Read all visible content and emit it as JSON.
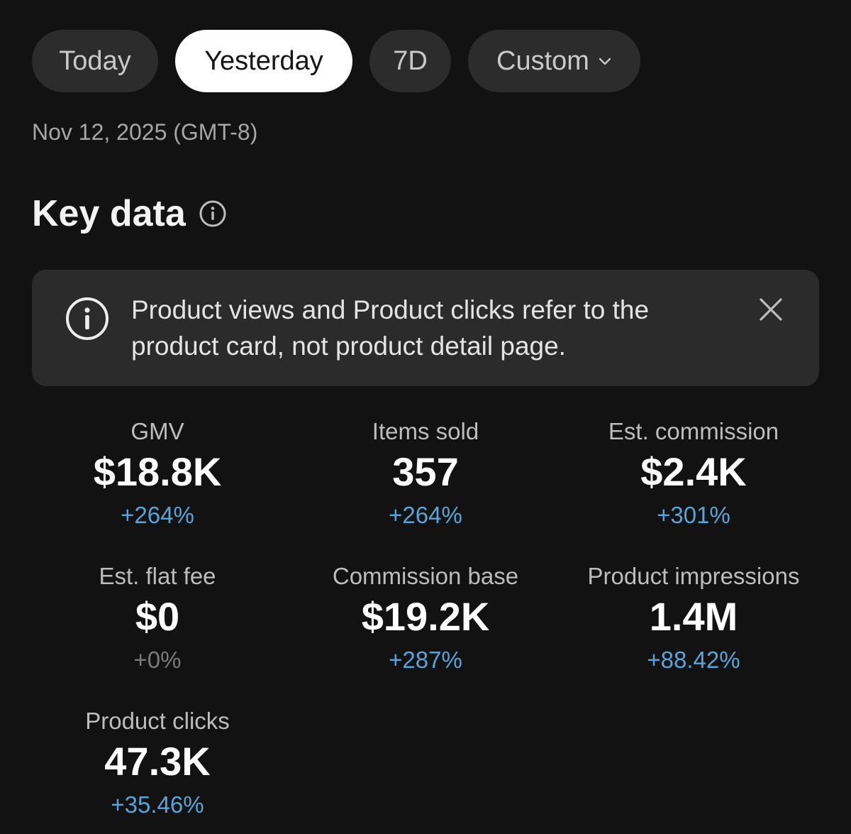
{
  "range_tabs": [
    {
      "label": "Today",
      "selected": false
    },
    {
      "label": "Yesterday",
      "selected": true
    },
    {
      "label": "7D",
      "selected": false
    },
    {
      "label": "Custom",
      "selected": false,
      "icon": "chevron-down-icon"
    }
  ],
  "date_line": "Nov 12, 2025 (GMT-8)",
  "section": {
    "title": "Key data",
    "icon": "info-icon"
  },
  "notice": {
    "icon": "info-icon",
    "text": "Product views and Product clicks refer to the product card, not product detail page.",
    "close_icon": "close-icon"
  },
  "metrics": [
    {
      "label": "GMV",
      "value": "$18.8K",
      "change": "+264%"
    },
    {
      "label": "Items sold",
      "value": "357",
      "change": "+264%"
    },
    {
      "label": "Est. commission",
      "value": "$2.4K",
      "change": "+301%"
    },
    {
      "label": "Est. flat fee",
      "value": "$0",
      "change": "+0%"
    },
    {
      "label": "Commission base",
      "value": "$19.2K",
      "change": "+287%"
    },
    {
      "label": "Product impressions",
      "value": "1.4M",
      "change": "+88.42%"
    },
    {
      "label": "Product clicks",
      "value": "47.3K",
      "change": "+35.46%"
    }
  ],
  "colors": {
    "background": "#121212",
    "positive_change": "#58a4d8",
    "neutral_change": "#7a7a7a",
    "selected_tab": "#ffffff",
    "tab": "#2c2c2c"
  }
}
